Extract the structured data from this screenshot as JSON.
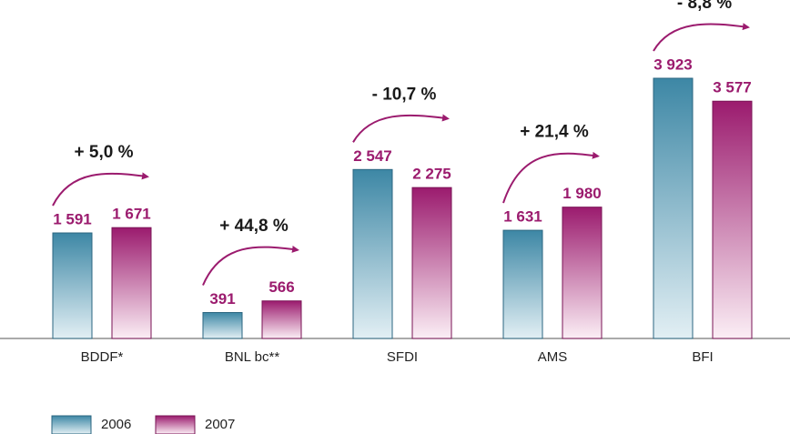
{
  "chart_data": {
    "type": "bar",
    "categories": [
      "BDDF*",
      "BNL bc**",
      "SFDI",
      "AMS",
      "BFI"
    ],
    "series": [
      {
        "name": "2006",
        "color": "#3d87a5",
        "values": [
          1591,
          391,
          2547,
          1631,
          3923
        ],
        "value_labels": [
          "1 591",
          "391",
          "2 547",
          "1 631",
          "3 923"
        ]
      },
      {
        "name": "2007",
        "color": "#9b1b6e",
        "values": [
          1671,
          566,
          2275,
          1980,
          3577
        ],
        "value_labels": [
          "1 671",
          "566",
          "2 275",
          "1 980",
          "3 577"
        ]
      }
    ],
    "annotations": [
      "+ 5,0 %",
      "+ 44,8 %",
      "- 10,7 %",
      "+ 21,4 %",
      "- 8,8 %"
    ]
  }
}
